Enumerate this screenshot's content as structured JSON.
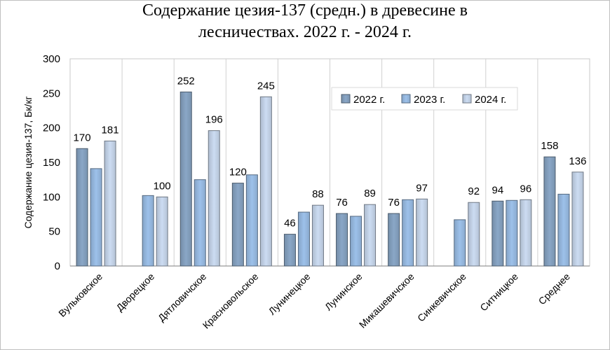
{
  "chart_data": {
    "type": "bar",
    "title_line1": "Содержание цезия-137 (средн.) в древесине в",
    "title_line2": "лесничествах.  2022 г. - 2024 г.",
    "ylabel": "Содержание цезия-137, Бк/кг",
    "xlabel": "",
    "ylim": [
      0,
      300
    ],
    "yticks": [
      0,
      50,
      100,
      150,
      200,
      250,
      300
    ],
    "grid": "vertical category separators",
    "legend_position": "top-right",
    "categories": [
      "Вульковское",
      "Дворецкое",
      "Дятловичское",
      "Красновольское",
      "Лунинецкое",
      "Лунинское",
      "Микашевичское",
      "Синкевичское",
      "Ситницкое",
      "Среднее"
    ],
    "series": [
      {
        "name": "2022 г.",
        "color": "#8aa7c7",
        "values": [
          170,
          null,
          252,
          120,
          46,
          76,
          76,
          null,
          94,
          158
        ],
        "labels": [
          true,
          false,
          true,
          true,
          true,
          true,
          true,
          false,
          true,
          true
        ]
      },
      {
        "name": "2023 г.",
        "color": "#9dc1ea",
        "values": [
          141,
          102,
          125,
          132,
          78,
          72,
          96,
          67,
          95,
          104
        ],
        "labels": [
          false,
          false,
          false,
          false,
          false,
          false,
          false,
          false,
          false,
          false
        ]
      },
      {
        "name": "2024 г.",
        "color": "#ccdcf2",
        "values": [
          181,
          100,
          196,
          245,
          88,
          89,
          97,
          92,
          96,
          136
        ],
        "labels": [
          true,
          true,
          true,
          true,
          true,
          true,
          true,
          true,
          true,
          true
        ]
      }
    ]
  }
}
